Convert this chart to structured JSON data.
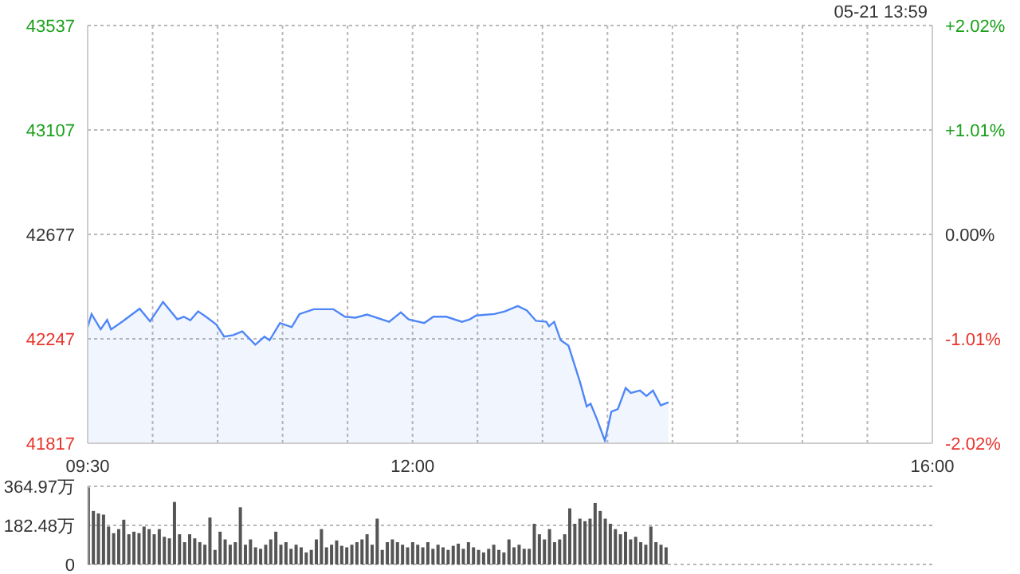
{
  "chart_data": [
    {
      "type": "area",
      "annotations": [
        "05-21 13:59"
      ],
      "x": [
        9.5,
        9.53,
        9.6,
        9.65,
        9.68,
        9.77,
        9.9,
        9.98,
        10.08,
        10.19,
        10.24,
        10.29,
        10.35,
        10.41,
        10.49,
        10.55,
        10.62,
        10.69,
        10.79,
        10.86,
        10.9,
        10.98,
        11.07,
        11.13,
        11.24,
        11.39,
        11.48,
        11.56,
        11.65,
        11.82,
        11.91,
        11.97,
        12.09,
        12.16,
        12.26,
        12.38,
        12.44,
        12.49,
        12.63,
        12.71,
        12.81,
        12.88,
        12.95,
        13.03,
        13.05,
        13.09,
        13.14,
        13.2,
        13.29,
        13.34,
        13.37,
        13.42,
        13.48,
        13.53,
        13.58,
        13.64,
        13.68,
        13.75,
        13.8,
        13.85,
        13.91,
        13.97
      ],
      "series": [
        {
          "color": "#4f86f7",
          "values": [
            42295,
            42349,
            42286,
            42325,
            42286,
            42319,
            42371,
            42319,
            42399,
            42327,
            42338,
            42323,
            42360,
            42338,
            42306,
            42256,
            42262,
            42278,
            42223,
            42256,
            42241,
            42312,
            42295,
            42349,
            42369,
            42369,
            42338,
            42334,
            42347,
            42317,
            42356,
            42327,
            42312,
            42338,
            42338,
            42317,
            42327,
            42343,
            42349,
            42360,
            42382,
            42364,
            42321,
            42317,
            42299,
            42317,
            42241,
            42219,
            42067,
            41969,
            41980,
            41915,
            41828,
            41947,
            41958,
            42045,
            42024,
            42034,
            42012,
            42034,
            41973,
            41986
          ]
        }
      ],
      "xlim": [
        9.5,
        16
      ],
      "xticks": [
        {
          "value": 9.5,
          "label": "09:30"
        },
        {
          "value": 10,
          "label": null
        },
        {
          "value": 10.5,
          "label": null
        },
        {
          "value": 11,
          "label": null
        },
        {
          "value": 11.5,
          "label": null
        },
        {
          "value": 12,
          "label": "12:00"
        },
        {
          "value": 12.5,
          "label": null
        },
        {
          "value": 13,
          "label": null
        },
        {
          "value": 13.5,
          "label": null
        },
        {
          "value": 14,
          "label": null
        },
        {
          "value": 14.5,
          "label": null
        },
        {
          "value": 15,
          "label": null
        },
        {
          "value": 15.5,
          "label": null
        },
        {
          "value": 16,
          "label": "16:00"
        }
      ],
      "ylim": [
        41817,
        43537
      ],
      "yticks": [
        41817,
        42247,
        42677,
        43107,
        43537
      ],
      "y2lim": [
        -2.02,
        2.02
      ],
      "y2ticks": [
        {
          "value": -2.02,
          "label": "-2.02%"
        },
        {
          "value": -1.01,
          "label": "-1.01%"
        },
        {
          "value": 0,
          "label": "0.00%"
        },
        {
          "value": 1.01,
          "label": "+1.01%"
        },
        {
          "value": 2.02,
          "label": "+2.02%"
        }
      ],
      "grid": true
    },
    {
      "type": "bar",
      "tick_labels": "y",
      "grid": "y",
      "x": [
        9.5,
        9.539,
        9.578,
        9.617,
        9.656,
        9.695,
        9.734,
        9.773,
        9.812,
        9.851,
        9.89,
        9.929,
        9.968,
        10.007,
        10.046,
        10.085,
        10.124,
        10.163,
        10.202,
        10.241,
        10.28,
        10.319,
        10.358,
        10.397,
        10.436,
        10.475,
        10.514,
        10.553,
        10.592,
        10.631,
        10.67,
        10.709,
        10.748,
        10.787,
        10.826,
        10.865,
        10.904,
        10.943,
        10.982,
        11.021,
        11.06,
        11.099,
        11.138,
        11.177,
        11.216,
        11.255,
        11.294,
        11.333,
        11.372,
        11.411,
        11.45,
        11.489,
        11.528,
        11.567,
        11.606,
        11.645,
        11.684,
        11.723,
        11.762,
        11.801,
        11.84,
        11.879,
        11.918,
        11.957,
        11.996,
        12.035,
        12.074,
        12.113,
        12.152,
        12.191,
        12.23,
        12.269,
        12.308,
        12.347,
        12.386,
        12.425,
        12.464,
        12.503,
        12.542,
        12.581,
        12.62,
        12.659,
        12.698,
        12.737,
        12.776,
        12.815,
        12.854,
        12.893,
        12.932,
        12.971,
        13.01,
        13.049,
        13.088,
        13.127,
        13.166,
        13.205,
        13.244,
        13.283,
        13.322,
        13.361,
        13.4,
        13.439,
        13.478,
        13.517,
        13.556,
        13.595,
        13.634,
        13.673,
        13.712,
        13.751,
        13.79,
        13.829,
        13.868,
        13.907,
        13.946
      ],
      "series": [
        {
          "color": "#555555",
          "values": [
            360,
            250,
            238,
            233,
            177,
            146,
            165,
            209,
            141,
            153,
            146,
            177,
            165,
            141,
            165,
            129,
            122,
            292,
            141,
            104,
            141,
            122,
            104,
            92,
            219,
            68,
            153,
            117,
            92,
            104,
            267,
            92,
            117,
            80,
            73,
            92,
            117,
            153,
            92,
            104,
            73,
            92,
            80,
            56,
            68,
            117,
            165,
            80,
            92,
            112,
            87,
            80,
            92,
            104,
            117,
            141,
            92,
            214,
            68,
            104,
            117,
            104,
            92,
            80,
            104,
            92,
            80,
            104,
            73,
            92,
            80,
            68,
            87,
            97,
            73,
            104,
            80,
            68,
            56,
            73,
            92,
            68,
            56,
            117,
            80,
            92,
            73,
            73,
            190,
            141,
            117,
            165,
            104,
            117,
            141,
            262,
            190,
            214,
            202,
            214,
            287,
            250,
            214,
            190,
            165,
            141,
            153,
            117,
            129,
            104,
            92,
            177,
            104,
            92,
            80
          ]
        }
      ],
      "xlim": [
        9.5,
        16
      ],
      "ylim": [
        0,
        364.97
      ],
      "yticks": [
        0,
        {
          "value": 182.48,
          "label": "182.48万"
        },
        {
          "value": 364.97,
          "label": "364.97万"
        }
      ]
    }
  ]
}
